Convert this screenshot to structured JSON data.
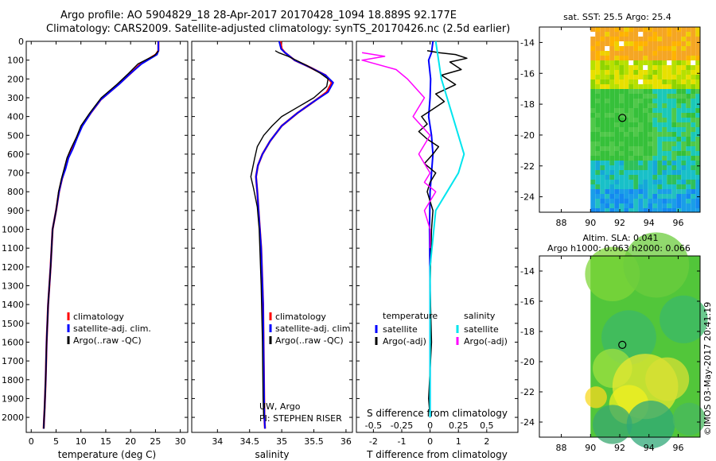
{
  "header": {
    "line1": "Argo profile: AO 5904829_18 28-Apr-2017 20170428_1094 18.889S 92.177E",
    "line2": "Climatology: CARS2009. Satellite-adjusted climatology: synTS_20170426.nc (2.5d earlier)"
  },
  "colors": {
    "climatology": "#ff0000",
    "satellite": "#0000ff",
    "argo": "#000000",
    "salinity_satellite": "#00e5ee",
    "salinity_argo": "#ff00ff"
  },
  "legends": {
    "temp": [
      "climatology",
      "satellite-adj. clim.",
      "Argo(..raw -QC)"
    ],
    "sal": [
      "climatology",
      "satellite-adj. clim.",
      "Argo(..raw -QC)"
    ],
    "diff": {
      "temp_title": "temperature",
      "sal_title": "salinity",
      "temp_items": [
        "satellite",
        "Argo(-adj)"
      ],
      "sal_items": [
        "satellite",
        "Argo(-adj)"
      ]
    }
  },
  "notes": {
    "credit1": "UW, Argo",
    "credit2": "PI: STEPHEN RISER",
    "diff_title": "S difference from climatology",
    "timestamp": "©IMOS 03-May-2017 20:41:19"
  },
  "maps": {
    "sst_title": "sat. SST: 25.5 Argo: 25.4",
    "sla_title1": "Altim. SLA: 0.041",
    "sla_title2": "Argo h1000: 0.063 h2000: 0.066",
    "lat_ticks": [
      -14,
      -16,
      -18,
      -20,
      -22,
      -24
    ],
    "lon_ticks": [
      88,
      90,
      92,
      94,
      96
    ],
    "lat_range": [
      -25,
      -13
    ],
    "lon_range": [
      86.5,
      97.5
    ],
    "data_lon_start": 90,
    "marker": {
      "lon": 92.177,
      "lat": -18.889
    }
  },
  "chart_data": [
    {
      "type": "line",
      "title": "",
      "xlabel": "temperature (deg C)",
      "ylabel": "",
      "xlim": [
        -1,
        31.5
      ],
      "ylim": [
        2080,
        0
      ],
      "xticks": [
        0,
        5,
        10,
        15,
        20,
        25,
        30
      ],
      "yticks": [
        0,
        100,
        200,
        300,
        400,
        500,
        600,
        700,
        800,
        900,
        1000,
        1100,
        1200,
        1300,
        1400,
        1500,
        1600,
        1700,
        1800,
        1900,
        2000
      ],
      "series": [
        {
          "name": "climatology",
          "x": [
            25.6,
            25.6,
            25.1,
            22,
            20,
            17.5,
            14,
            12,
            10.2,
            9.2,
            8.2,
            7.4,
            6.8,
            6.2,
            5.6,
            5,
            4.3,
            3.9,
            3.4,
            3.1,
            2.9,
            2.7,
            2.6,
            2.5
          ],
          "y": [
            0,
            50,
            70,
            120,
            170,
            230,
            310,
            380,
            450,
            510,
            570,
            620,
            680,
            730,
            800,
            900,
            1000,
            1200,
            1400,
            1600,
            1800,
            1950,
            2000,
            2060
          ]
        },
        {
          "name": "satellite-adj. clim.",
          "x": [
            25.6,
            25.6,
            25.3,
            22.2,
            20,
            17.6,
            14,
            12,
            10.3,
            9.3,
            8.4,
            7.5,
            6.9,
            6.2,
            5.6,
            5,
            4.3,
            3.9,
            3.4,
            3.1,
            2.9,
            2.7,
            2.6,
            2.5
          ],
          "y": [
            0,
            50,
            70,
            120,
            170,
            230,
            310,
            380,
            450,
            510,
            570,
            620,
            680,
            730,
            800,
            900,
            1000,
            1200,
            1400,
            1600,
            1800,
            1950,
            2000,
            2060
          ]
        },
        {
          "name": "Argo(..raw -QC)",
          "x": [
            25.5,
            25.5,
            24.8,
            21.5,
            19.6,
            17.2,
            14.1,
            11.8,
            10,
            9.1,
            8,
            7.2,
            6.6,
            6.1,
            5.5,
            5,
            4.3,
            3.9,
            3.4,
            3.1,
            2.9,
            2.7,
            2.6,
            2.5
          ],
          "y": [
            50,
            55,
            75,
            120,
            170,
            230,
            300,
            380,
            450,
            510,
            570,
            620,
            680,
            730,
            800,
            900,
            1000,
            1200,
            1400,
            1600,
            1800,
            1950,
            2000,
            2060
          ]
        }
      ]
    },
    {
      "type": "line",
      "title": "",
      "xlabel": "salinity",
      "ylabel": "",
      "xlim": [
        33.6,
        36.1
      ],
      "ylim": [
        2080,
        0
      ],
      "xticks": [
        34,
        34.5,
        35,
        35.5,
        36
      ],
      "series": [
        {
          "name": "climatology",
          "x": [
            34.98,
            35.0,
            35.05,
            35.2,
            35.45,
            35.68,
            35.78,
            35.7,
            35.5,
            35.25,
            35.0,
            34.82,
            34.7,
            34.63,
            34.6,
            34.62,
            34.64,
            34.68,
            34.71,
            34.72,
            34.73,
            34.74
          ],
          "y": [
            0,
            40,
            60,
            100,
            140,
            180,
            220,
            270,
            320,
            380,
            450,
            530,
            600,
            660,
            720,
            800,
            900,
            1100,
            1400,
            1700,
            2000,
            2060
          ]
        },
        {
          "name": "satellite-adj. clim.",
          "x": [
            34.96,
            34.99,
            35.05,
            35.2,
            35.45,
            35.68,
            35.8,
            35.72,
            35.5,
            35.25,
            35.0,
            34.82,
            34.7,
            34.63,
            34.6,
            34.62,
            34.64,
            34.68,
            34.71,
            34.72,
            34.73,
            34.74
          ],
          "y": [
            0,
            40,
            60,
            100,
            140,
            180,
            220,
            270,
            320,
            380,
            450,
            530,
            600,
            660,
            720,
            800,
            900,
            1100,
            1400,
            1700,
            2000,
            2060
          ]
        },
        {
          "name": "Argo(..raw -QC)",
          "x": [
            34.9,
            34.95,
            35.1,
            35.4,
            35.6,
            35.72,
            35.7,
            35.5,
            35.25,
            35.0,
            34.85,
            34.72,
            34.62,
            34.58,
            34.52,
            34.56,
            34.62,
            34.65,
            34.68,
            34.7,
            34.71,
            34.72
          ],
          "y": [
            50,
            60,
            80,
            130,
            170,
            200,
            240,
            300,
            350,
            400,
            450,
            500,
            560,
            620,
            720,
            780,
            880,
            1000,
            1300,
            1600,
            1900,
            2000
          ]
        }
      ]
    },
    {
      "type": "line",
      "title": "S difference from climatology",
      "xlabel": "T difference from climatology",
      "ylabel": "",
      "xlim": [
        -2.6,
        3.1
      ],
      "ylim": [
        2080,
        0
      ],
      "xticks_T": [
        -2,
        -1,
        0,
        1,
        2
      ],
      "xticks_S": [
        -0.5,
        -0.25,
        0,
        0.25,
        0.5
      ],
      "series": [
        {
          "name": "temperature satellite",
          "x": [
            0.1,
            0.05,
            -0.05,
            0.02,
            0.0,
            -0.05,
            0.05,
            0.1,
            0.05,
            0.0,
            -0.02,
            0.0,
            0.0,
            0.0,
            0.0
          ],
          "y": [
            0,
            60,
            100,
            200,
            300,
            400,
            500,
            600,
            700,
            800,
            1000,
            1300,
            1600,
            1900,
            2000
          ]
        },
        {
          "name": "temperature Argo(-adj)",
          "x": [
            -0.1,
            0.3,
            0.9,
            1.3,
            0.7,
            1.1,
            0.4,
            0.9,
            0.2,
            0.5,
            0.1,
            -0.3,
            -0.1,
            -0.4,
            -0.1,
            0.3,
            0.1,
            -0.2,
            0.2,
            0.0,
            -0.1,
            0.1,
            0.05,
            0.0,
            0.05,
            -0.05,
            0.0
          ],
          "y": [
            50,
            60,
            70,
            90,
            110,
            150,
            180,
            230,
            280,
            320,
            360,
            400,
            440,
            480,
            520,
            560,
            600,
            650,
            700,
            750,
            800,
            900,
            1000,
            1300,
            1600,
            1900,
            2000
          ]
        },
        {
          "name": "salinity satellite",
          "x": [
            0.05,
            0.1,
            0.15,
            0.2,
            0.25,
            0.3,
            0.25,
            0.15,
            0.05,
            0.0,
            0.0,
            0.0
          ],
          "y": [
            0,
            200,
            300,
            400,
            500,
            600,
            700,
            800,
            900,
            1200,
            1600,
            2000
          ]
        },
        {
          "name": "salinity Argo(-adj)",
          "x": [
            -0.6,
            -0.4,
            -0.6,
            -0.3,
            -0.2,
            -0.05,
            -0.15,
            0.0,
            -0.1,
            0.0,
            -0.05,
            0.05,
            -0.05,
            0.0,
            0.0
          ],
          "y": [
            60,
            80,
            100,
            150,
            200,
            300,
            400,
            500,
            600,
            700,
            750,
            800,
            900,
            1000,
            1100
          ]
        }
      ]
    }
  ]
}
